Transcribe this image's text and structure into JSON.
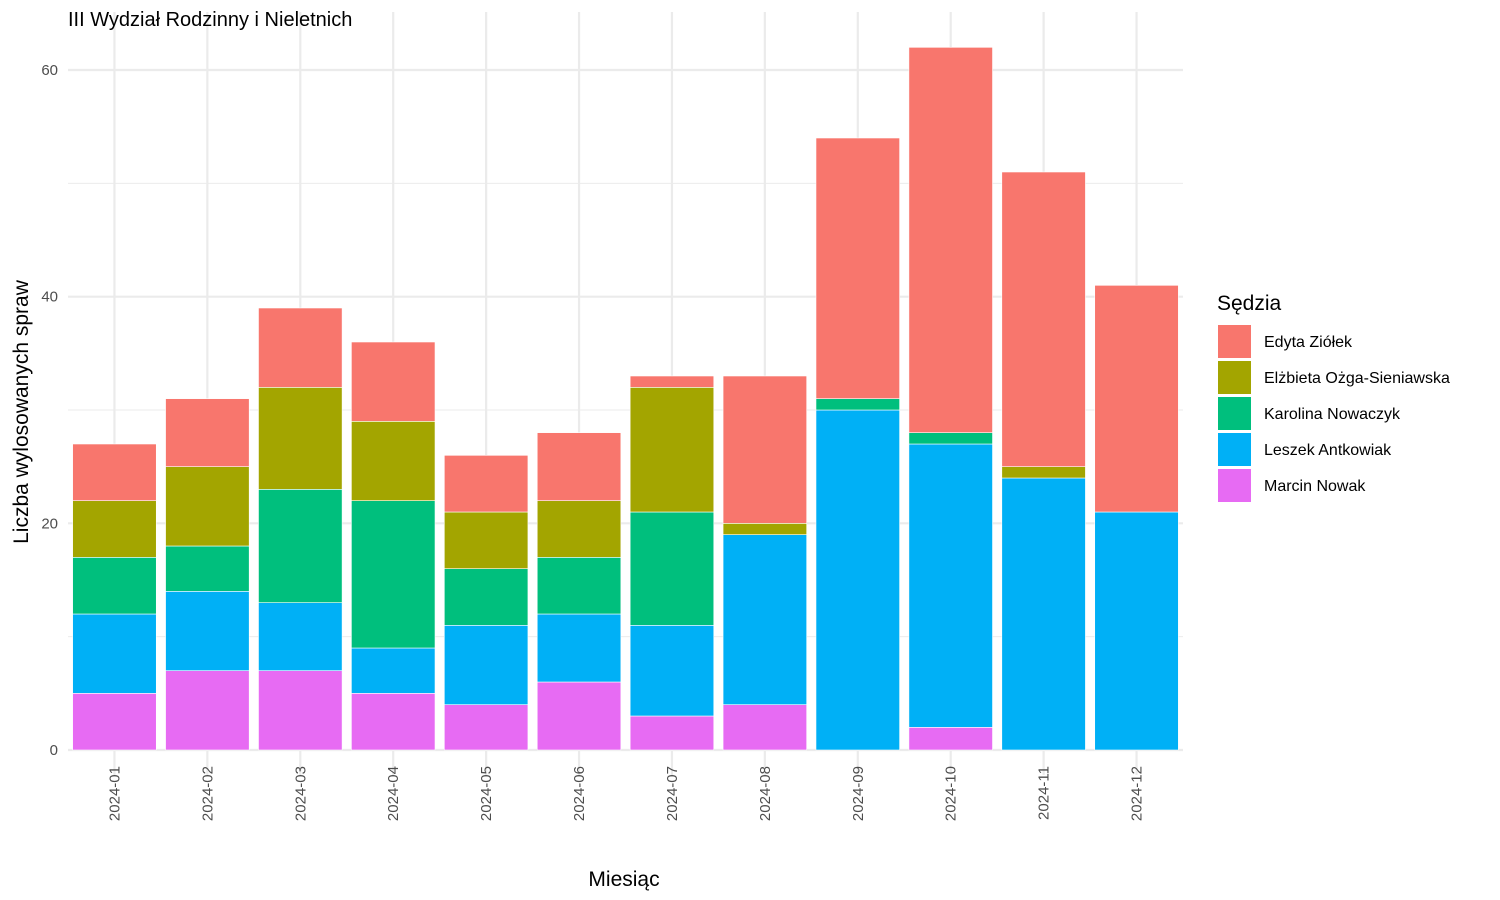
{
  "chart_data": {
    "type": "bar",
    "stacked": true,
    "title": "III Wydział Rodzinny i Nieletnich",
    "xlabel": "Miesiąc",
    "ylabel": "Liczba wylosowanych spraw",
    "ylim": [
      0,
      63
    ],
    "yticks": [
      0,
      20,
      40,
      60
    ],
    "grid": true,
    "legend_title": "Sędzia",
    "legend_position": "right",
    "categories": [
      "2024-01",
      "2024-02",
      "2024-03",
      "2024-04",
      "2024-05",
      "2024-06",
      "2024-07",
      "2024-08",
      "2024-09",
      "2024-10",
      "2024-11",
      "2024-12"
    ],
    "series": [
      {
        "name": "Marcin Nowak",
        "color": "#E76BF3",
        "values": [
          5,
          7,
          7,
          5,
          4,
          6,
          3,
          4,
          0,
          2,
          0,
          0
        ]
      },
      {
        "name": "Leszek Antkowiak",
        "color": "#00B0F6",
        "values": [
          7,
          7,
          6,
          4,
          7,
          6,
          8,
          15,
          30,
          25,
          24,
          21
        ]
      },
      {
        "name": "Karolina Nowaczyk",
        "color": "#00BF7D",
        "values": [
          5,
          4,
          10,
          13,
          5,
          5,
          10,
          0,
          1,
          1,
          0,
          0
        ]
      },
      {
        "name": "Elżbieta Ożga-Sieniawska",
        "color": "#A3A500",
        "values": [
          5,
          7,
          9,
          7,
          5,
          5,
          11,
          1,
          0,
          0,
          1,
          0
        ]
      },
      {
        "name": "Edyta Ziółek",
        "color": "#F8766D",
        "values": [
          5,
          6,
          7,
          7,
          5,
          6,
          1,
          13,
          23,
          34,
          26,
          20
        ]
      }
    ],
    "legend_order": [
      "Edyta Ziółek",
      "Elżbieta Ożga-Sieniawska",
      "Karolina Nowaczyk",
      "Leszek Antkowiak",
      "Marcin Nowak"
    ]
  }
}
